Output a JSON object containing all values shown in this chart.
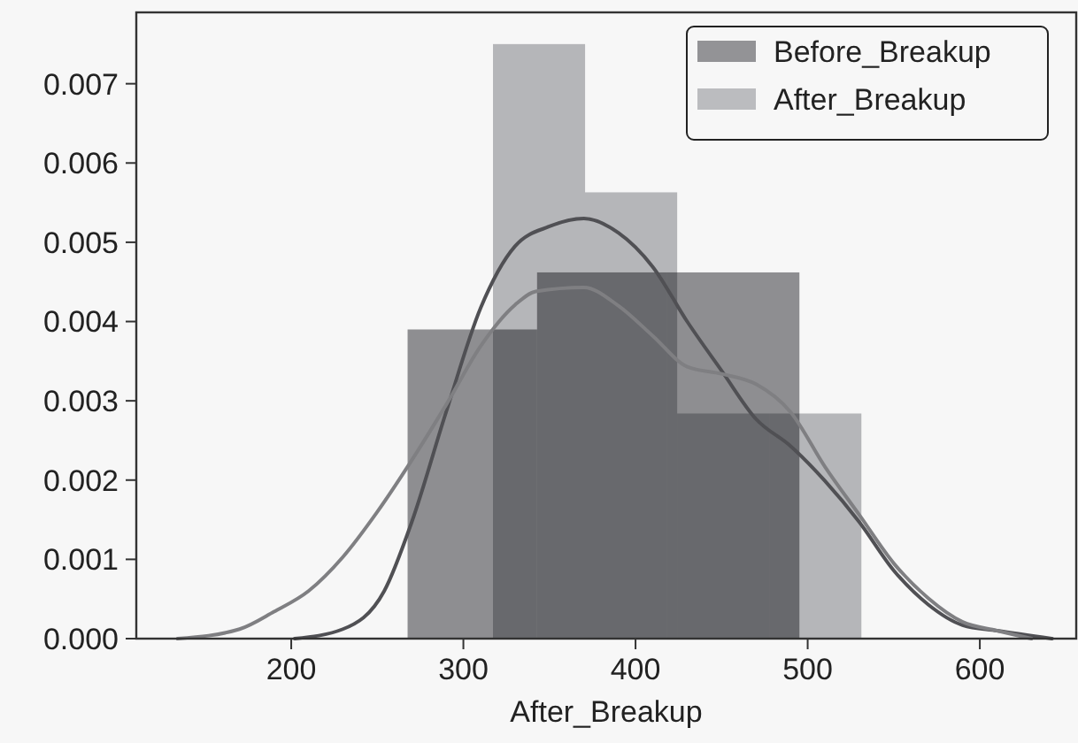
{
  "chart_data": {
    "type": "histogram",
    "xlabel": "After_Breakup",
    "legend": "top right",
    "xlim": [
      110,
      656
    ],
    "ylim": [
      0,
      0.0079
    ],
    "xticks": [
      200,
      300,
      400,
      500,
      600
    ],
    "yticks": [
      {
        "value": 0,
        "label": "0.000"
      },
      {
        "value": 0.001,
        "label": "0.001"
      },
      {
        "value": 0.002,
        "label": "0.002"
      },
      {
        "value": 0.003,
        "label": "0.003"
      },
      {
        "value": 0.004,
        "label": "0.004"
      },
      {
        "value": 0.005,
        "label": "0.005"
      },
      {
        "value": 0.006,
        "label": "0.006"
      },
      {
        "value": 0.007,
        "label": "0.007"
      }
    ],
    "series": [
      {
        "name": "Before_Breakup",
        "color": "#939396",
        "bins": [
          267.6,
          342.8,
          418,
          495.2
        ],
        "values": [
          0.0039,
          0.00462,
          0.00462
        ]
      },
      {
        "name": "After_Breakup",
        "color": "#bbbcbf",
        "bins": [
          317.2,
          370.7,
          424.2,
          477.7,
          531.2
        ],
        "values": [
          0.0075,
          0.00563,
          0.00284,
          0.00284
        ]
      },
      {
        "type": "line",
        "color": "#505054",
        "x": [
          202,
          230,
          254,
          270,
          290,
          310,
          330,
          350,
          370,
          390,
          410,
          430,
          450,
          470,
          490,
          510,
          530,
          550,
          570,
          590,
          610,
          642
        ],
        "values": [
          0,
          0.00012,
          0.0006,
          0.00147,
          0.00286,
          0.00417,
          0.00495,
          0.0052,
          0.0053,
          0.00512,
          0.00469,
          0.004,
          0.00338,
          0.00277,
          0.00243,
          0.00199,
          0.00147,
          0.00086,
          0.00043,
          0.00017,
          0.0001,
          0
        ]
      },
      {
        "type": "line",
        "color": "#7f7f82",
        "x": [
          134,
          170,
          190,
          210,
          230,
          250,
          270,
          290,
          310,
          330,
          342,
          370,
          390,
          410,
          430,
          450,
          470,
          490,
          510,
          530,
          550,
          570,
          590,
          610,
          630
        ],
        "values": [
          0,
          0.00012,
          0.00034,
          0.0006,
          0.00103,
          0.0016,
          0.00225,
          0.00295,
          0.00369,
          0.00421,
          0.00438,
          0.00443,
          0.0042,
          0.00382,
          0.00343,
          0.00334,
          0.00321,
          0.00286,
          0.00217,
          0.00156,
          0.00095,
          0.00051,
          0.00021,
          0.0001,
          0
        ]
      }
    ]
  }
}
